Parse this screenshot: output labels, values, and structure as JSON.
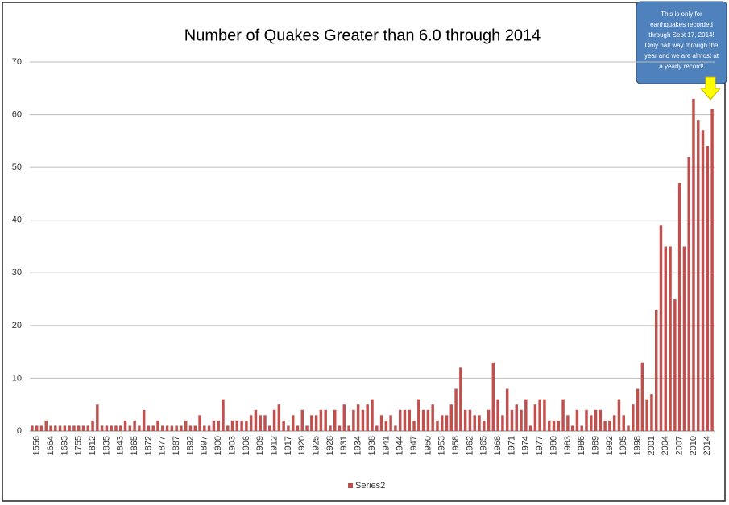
{
  "chart_data": {
    "type": "bar",
    "title": "Number of Quakes Greater than 6.0 through 2014",
    "categories": [
      null,
      "1556",
      null,
      null,
      "1664",
      null,
      null,
      "1693",
      null,
      null,
      "1755",
      null,
      null,
      "1812",
      null,
      null,
      "1835",
      null,
      null,
      "1843",
      null,
      null,
      "1865",
      null,
      null,
      "1872",
      null,
      null,
      "1877",
      null,
      null,
      "1887",
      null,
      null,
      "1892",
      null,
      null,
      "1897",
      null,
      null,
      "1900",
      null,
      null,
      "1903",
      null,
      null,
      "1906",
      null,
      null,
      "1909",
      null,
      null,
      "1912",
      null,
      null,
      "1917",
      null,
      null,
      "1920",
      null,
      null,
      "1925",
      null,
      null,
      "1928",
      null,
      null,
      "1931",
      null,
      null,
      "1934",
      null,
      null,
      "1938",
      null,
      null,
      "1941",
      null,
      null,
      "1944",
      null,
      null,
      "1947",
      null,
      null,
      "1950",
      null,
      null,
      "1953",
      null,
      null,
      "1958",
      null,
      null,
      "1962",
      null,
      null,
      "1965",
      null,
      null,
      "1968",
      null,
      null,
      "1971",
      null,
      null,
      "1974",
      null,
      null,
      "1977",
      null,
      null,
      "1980",
      null,
      null,
      "1983",
      null,
      null,
      "1986",
      null,
      null,
      "1989",
      null,
      null,
      "1992",
      null,
      null,
      "1995",
      null,
      null,
      "1998",
      null,
      null,
      "2001",
      null,
      null,
      "2004",
      null,
      null,
      "2007",
      null,
      null,
      "2010",
      null,
      null,
      "2014",
      null
    ],
    "series": [
      {
        "name": "Series2",
        "color": "#c0504d",
        "values": [
          1,
          1,
          1,
          2,
          1,
          1,
          1,
          1,
          1,
          1,
          1,
          1,
          1,
          2,
          5,
          1,
          1,
          1,
          1,
          1,
          2,
          1,
          2,
          1,
          4,
          1,
          1,
          2,
          1,
          1,
          1,
          1,
          1,
          2,
          1,
          1,
          3,
          1,
          1,
          2,
          2,
          6,
          1,
          2,
          2,
          2,
          2,
          3,
          4,
          3,
          3,
          1,
          4,
          5,
          2,
          1,
          3,
          1,
          4,
          1,
          3,
          3,
          4,
          4,
          1,
          4,
          1,
          5,
          1,
          4,
          5,
          4,
          5,
          6,
          1,
          3,
          2,
          3,
          1,
          4,
          4,
          4,
          2,
          6,
          4,
          4,
          5,
          2,
          3,
          3,
          5,
          8,
          12,
          4,
          4,
          3,
          3,
          2,
          4,
          13,
          6,
          3,
          8,
          4,
          5,
          4,
          6,
          1,
          5,
          6,
          6,
          2,
          2,
          2,
          6,
          3,
          1,
          4,
          1,
          4,
          3,
          4,
          4,
          2,
          2,
          3,
          6,
          3,
          1,
          5,
          8,
          13,
          6,
          7,
          23,
          39,
          35,
          35,
          25,
          47,
          35,
          52,
          63,
          59,
          57,
          54,
          61
        ]
      }
    ],
    "ylim": [
      0,
      70
    ],
    "yticks": [
      0,
      10,
      20,
      30,
      40,
      50,
      60,
      70
    ],
    "grid": true,
    "legend": "bottom",
    "annotation": [
      "This is only for",
      "earthquakes recorded",
      "through Sept 17, 2014!",
      "Only half way through the",
      "year and we are almost at",
      "a yearly record!"
    ]
  }
}
